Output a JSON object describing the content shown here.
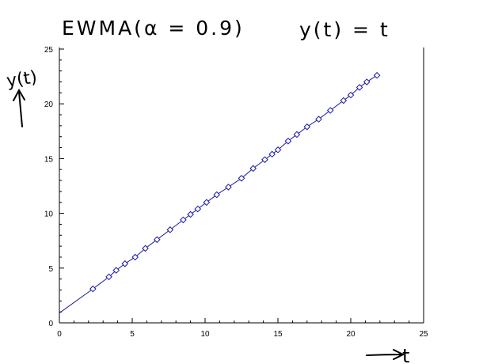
{
  "chart_data": {
    "type": "line",
    "title": "EWMA(α = 0.9)",
    "subtitle": "y(t) = t",
    "ylabel": "y(t)",
    "xlabel": "t",
    "xlim": [
      0,
      25
    ],
    "ylim": [
      0,
      25
    ],
    "x_ticks": [
      0,
      5,
      10,
      15,
      20,
      25
    ],
    "y_ticks": [
      0,
      5,
      10,
      15,
      20,
      25
    ],
    "grid": false,
    "series": [
      {
        "color": "#1a1aa8",
        "marker": "diamond",
        "x": [
          0.0,
          2.3,
          3.4,
          3.9,
          4.5,
          5.2,
          5.9,
          6.7,
          7.6,
          8.5,
          9.0,
          9.5,
          10.1,
          10.8,
          11.6,
          12.5,
          13.3,
          14.1,
          14.6,
          15.0,
          15.7,
          16.3,
          17.0,
          17.8,
          18.6,
          19.5,
          20.0,
          20.6,
          21.1,
          21.8
        ],
        "values": [
          0.9,
          3.1,
          4.2,
          4.8,
          5.4,
          6.0,
          6.8,
          7.6,
          8.5,
          9.4,
          9.9,
          10.4,
          11.0,
          11.7,
          12.4,
          13.2,
          14.1,
          14.9,
          15.4,
          15.8,
          16.6,
          17.2,
          17.9,
          18.6,
          19.4,
          20.3,
          20.8,
          21.5,
          22.0,
          22.6
        ]
      }
    ]
  }
}
